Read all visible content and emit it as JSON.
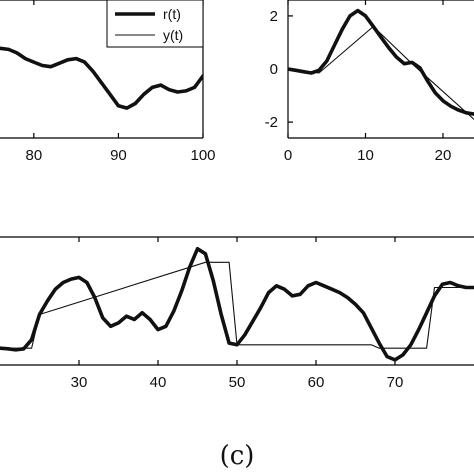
{
  "colors": {
    "axis": "#000000",
    "line": "#111111",
    "background": "#ffffff"
  },
  "chart_data": [
    {
      "type": "line",
      "xlim": [
        76,
        100
      ],
      "ylim": [
        -3,
        3
      ],
      "x_ticks": [
        80,
        90,
        100
      ],
      "legend": {
        "placement": "top-right",
        "entries": [
          "r(t)",
          "y(t)"
        ]
      },
      "series": [
        {
          "name": "r(t)",
          "style": "thick",
          "x": [
            76,
            77,
            78,
            79,
            80,
            81,
            82,
            83,
            84,
            85,
            86,
            87,
            88,
            89,
            90,
            91,
            92,
            93,
            94,
            95,
            96,
            97,
            98,
            99,
            100
          ],
          "y": [
            0.9,
            0.85,
            0.7,
            0.45,
            0.3,
            0.15,
            0.1,
            0.25,
            0.4,
            0.45,
            0.3,
            -0.1,
            -0.6,
            -1.1,
            -1.6,
            -1.7,
            -1.5,
            -1.1,
            -0.8,
            -0.7,
            -0.9,
            -1.0,
            -0.95,
            -0.8,
            -0.3
          ]
        }
      ]
    },
    {
      "type": "line",
      "xlim": [
        0,
        24
      ],
      "ylim": [
        -2.6,
        2.6
      ],
      "x_ticks": [
        0,
        10,
        20
      ],
      "y_ticks": [
        -2,
        0,
        2
      ],
      "series": [
        {
          "name": "r(t)",
          "style": "thick",
          "x": [
            0,
            1,
            2,
            3,
            4,
            5,
            6,
            7,
            8,
            9,
            10,
            11,
            12,
            13,
            14,
            15,
            16,
            17,
            18,
            19,
            20,
            21,
            22,
            23,
            24
          ],
          "y": [
            0.0,
            -0.05,
            -0.1,
            -0.15,
            -0.05,
            0.3,
            0.9,
            1.5,
            2.0,
            2.2,
            2.0,
            1.6,
            1.2,
            0.8,
            0.45,
            0.2,
            0.25,
            0.05,
            -0.45,
            -0.9,
            -1.2,
            -1.4,
            -1.55,
            -1.65,
            -1.7
          ]
        },
        {
          "name": "y(t)",
          "style": "thin",
          "x": [
            0,
            4,
            11,
            16,
            24
          ],
          "y": [
            0.0,
            -0.15,
            1.6,
            0.2,
            -1.9
          ]
        }
      ]
    },
    {
      "type": "line",
      "xlim": [
        20,
        80
      ],
      "ylim": [
        -1.6,
        2.2
      ],
      "x_ticks": [
        30,
        40,
        50,
        60,
        70
      ],
      "x_tick_labels": [
        "30",
        "40",
        "50",
        "60",
        "70"
      ],
      "panel_label": "(c)",
      "series": [
        {
          "name": "r(t)",
          "style": "thick",
          "x": [
            20,
            21,
            22,
            23,
            24,
            25,
            26,
            27,
            28,
            29,
            30,
            31,
            32,
            33,
            34,
            35,
            36,
            37,
            38,
            39,
            40,
            41,
            42,
            43,
            44,
            45,
            46,
            47,
            48,
            49,
            50,
            51,
            52,
            53,
            54,
            55,
            56,
            57,
            58,
            59,
            60,
            61,
            62,
            63,
            64,
            65,
            66,
            67,
            68,
            69,
            70,
            71,
            72,
            73,
            74,
            75,
            76,
            77,
            78,
            79,
            80
          ],
          "y": [
            -1.1,
            -1.12,
            -1.15,
            -1.12,
            -0.85,
            -0.1,
            0.3,
            0.65,
            0.85,
            0.95,
            1.0,
            0.85,
            0.4,
            -0.2,
            -0.45,
            -0.35,
            -0.15,
            -0.25,
            -0.05,
            -0.25,
            -0.55,
            -0.45,
            0.0,
            0.6,
            1.3,
            1.85,
            1.7,
            0.9,
            -0.1,
            -0.95,
            -1.0,
            -0.7,
            -0.3,
            0.1,
            0.55,
            0.75,
            0.65,
            0.45,
            0.5,
            0.75,
            0.85,
            0.75,
            0.65,
            0.55,
            0.4,
            0.2,
            -0.05,
            -0.5,
            -0.95,
            -1.35,
            -1.45,
            -1.3,
            -1.0,
            -0.55,
            -0.05,
            0.45,
            0.8,
            0.85,
            0.75,
            0.7,
            0.7
          ]
        },
        {
          "name": "y(t)",
          "style": "thin",
          "x": [
            20,
            24,
            25,
            46,
            49,
            50,
            67,
            68,
            74,
            75,
            80
          ],
          "y": [
            -1.1,
            -1.1,
            -0.1,
            1.45,
            1.45,
            -1.0,
            -1.0,
            -1.1,
            -1.1,
            0.7,
            0.7
          ]
        }
      ]
    }
  ]
}
